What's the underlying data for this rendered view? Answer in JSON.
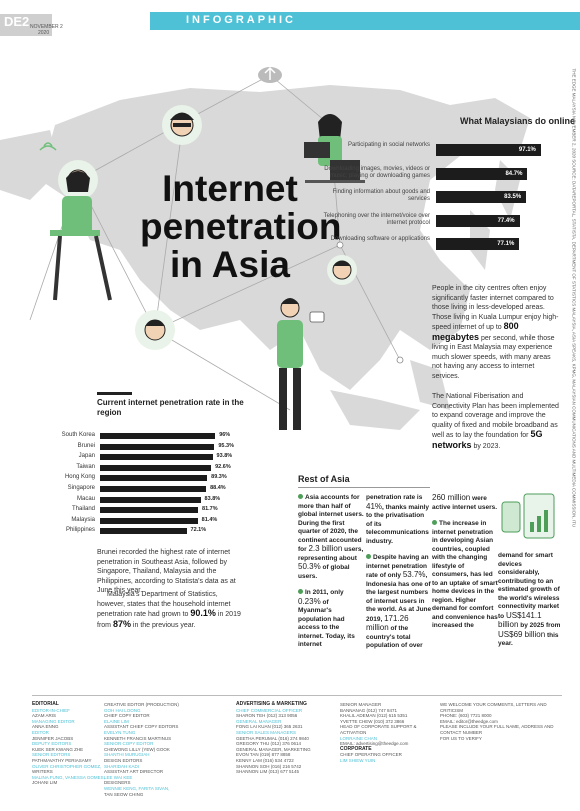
{
  "header": {
    "section_code": "DE2",
    "date_line1": "NOVEMBER 2",
    "date_line2": "2020",
    "banner": "INFOGRAPHIC"
  },
  "title": {
    "line1": "Internet",
    "line2": "penetration",
    "line3": "in Asia"
  },
  "online": {
    "title": "What Malaysians do online",
    "items": [
      {
        "label": "Participating in social networks",
        "value": 97.1,
        "value_label": "97.1%"
      },
      {
        "label": "Downloading images, movies, videos or music; playing or downloading games",
        "value": 84.7,
        "value_label": "84.7%"
      },
      {
        "label": "Finding information about goods and services",
        "value": 83.5,
        "value_label": "83.5%"
      },
      {
        "label": "Telephoning over the internet/voice over internet protocol",
        "value": 77.4,
        "value_label": "77.4%"
      },
      {
        "label": "Downloading software or applications",
        "value": 77.1,
        "value_label": "77.1%"
      }
    ]
  },
  "right_text": {
    "p1_a": "People in the city centres often enjoy significantly faster internet compared to those living in less-developed areas. Those living in Kuala Lumpur enjoy high-speed internet of up to",
    "p1_b": "800 megabytes",
    "p1_c": "per second, while those living in East Malaysia may experience much slower speeds, with many areas not having any access to internet services.",
    "p2_a": "The National Fiberisation and Connectivity Plan has been implemented to expand coverage and improve the quality of fixed and mobile broadband as well as to lay the foundation for",
    "p2_b": "5G networks",
    "p2_c": "by 2023."
  },
  "penetration": {
    "title": "Current internet penetration rate in the region",
    "rows": [
      {
        "country": "South Korea",
        "value": 96,
        "value_label": "96%"
      },
      {
        "country": "Brunei",
        "value": 95.3,
        "value_label": "95.3%"
      },
      {
        "country": "Japan",
        "value": 93.8,
        "value_label": "93.8%"
      },
      {
        "country": "Taiwan",
        "value": 92.6,
        "value_label": "92.6%"
      },
      {
        "country": "Hong Kong",
        "value": 89.3,
        "value_label": "89.3%"
      },
      {
        "country": "Singapore",
        "value": 88.4,
        "value_label": "88.4%"
      },
      {
        "country": "Macau",
        "value": 83.8,
        "value_label": "83.8%"
      },
      {
        "country": "Thailand",
        "value": 81.7,
        "value_label": "81.7%"
      },
      {
        "country": "Malaysia",
        "value": 81.4,
        "value_label": "81.4%"
      },
      {
        "country": "Philippines",
        "value": 72.1,
        "value_label": "72.1%"
      }
    ]
  },
  "left_text": {
    "p1": "Brunei recorded the highest rate of internet penetration in Southeast Asia, followed by Singapore, Thailand, Malaysia and the Philippines, according to Statista's data as at June this year.",
    "p2_a": "Malaysia's Department of Statistics, however, states that the household internet penetration rate had grown to",
    "p2_b": "90.1%",
    "p2_c": "in 2019 from",
    "p2_d": "87%",
    "p2_e": "in the previous year."
  },
  "rest_of_asia": {
    "title": "Rest of Asia",
    "col1_a": "Asia accounts for more than half of global internet users. During the first quarter of 2020, the continent accounted for",
    "col1_b": "2.3 billion",
    "col1_c": "users, representing about",
    "col1_d": "50.3%",
    "col1_e": "of global users.",
    "col1_f": "In 2011, only",
    "col1_g": "0.23%",
    "col1_h": "of Myanmar's population had access to the internet. Today, its internet",
    "col2_a": "penetration rate is",
    "col2_b": "41%",
    "col2_c": ", thanks mainly to the privatisation of its telecommunications industry.",
    "col2_d": "Despite having an internet penetration rate of only",
    "col2_e": "53.7%",
    "col2_f": ", Indonesia has one of the largest numbers of internet users in the world. As at June 2019,",
    "col2_g": "171.26 million",
    "col2_h": "of the country's total population of over",
    "col3_a": "260 million",
    "col3_b": "were active internet users.",
    "col3_c": "The increase in internet penetration in developing Asian countries, coupled with the changing lifestyle of consumers, has led to an uptake of smart home devices in the region. Higher demand for comfort and convenience has increased the",
    "col4_a": "demand for smart devices considerably, contributing to an estimated growth of the world's wireless connectivity market to",
    "col4_b": "US$141.1 billion",
    "col4_c": "by 2025 from",
    "col4_d": "US$69 billion",
    "col4_e": "this year."
  },
  "footer": {
    "c1": [
      "EDITORIAL",
      "EDITOR-IN-CHIEF",
      "AZAM ARIS",
      "MANAGING EDITOR",
      "ANNA ENNG",
      "EDITOR",
      "JENNIFER JACOBS",
      "DEPUTY EDITORS",
      "KUEK SER KWANG ZHE",
      "SENIOR EDITORS",
      "PATHMAVATHY PERIASAMY",
      "OLIVER CHRISTOPHER GOMEZ,",
      "WRITERS",
      "MALINA FUNG, VANESSA GOMES,",
      "JOHANI LIM"
    ],
    "c2": [
      "CREATIVE EDITOR (PRODUCTION)",
      "GOH HAI LOONG",
      "CHIEF COPY EDITOR",
      "ELAINE LIM",
      "ASSISTANT CHIEF COPY EDITORS",
      "EVELYN TUNG",
      "KENNETH FRANCIS MARTINUS",
      "SENIOR COPY EDITOR",
      "CHEWONG LILLY (YEW) GOOK",
      "SHANTHI MURUGIAH",
      "DESIGN EDITORS",
      "SHARIDAH KADI",
      "ASSISTANT ART DIRECTOR",
      "LEE WAI KEE",
      "DESIGNERS",
      "WENNIE KENG, FARITA SIVAN,",
      "TAN SEOW CHING"
    ],
    "c3": [
      "ADVERTISING & MARKETING",
      "CHIEF COMMERCIAL OFFICER",
      "SHARON TEH (012) 313 9056",
      "GENERAL MANAGER",
      "FONG LAI KUAN (012) 365 2631",
      "SENIOR SALES MANAGERS",
      "GEETHA PERUMAL (016) 274 9840",
      "GREGORY THU (012) 376 0614",
      "GENERAL MANAGER, MARKETING",
      "EVON TAN (019) 877 8858",
      "KENNY LAM (016) 534 4722",
      "SHANNON SOH (016) 216 5742",
      "SHANNON LIM (013) 677 5145"
    ],
    "c4": [
      "SENIOR MANAGER",
      "BANNANAG (012) 747 8471",
      "KHALIL ADEMAN (012) 615 5351",
      "YVETTE CHEW (010) 372 3866",
      "HEAD OF CORPORATE SUPPORT & ACTIVATION",
      "LORRAINE CHAN",
      "EMAIL: advertising@theedge.com",
      "CORPORATE",
      "CHIEF OPERATING OFFICER",
      "LIM SHIEW YUIN"
    ],
    "c5": [
      "WE WELCOME YOUR COMMENTS, LETTERS AND CRITICISM",
      "PHONE: (603) 7721 8000",
      "EMAIL: editor@theedge.com",
      "PLEASE INCLUDE YOUR FULL NAME, ADDRESS AND CONTACT NUMBER",
      "FOR US TO VERIFY"
    ]
  },
  "sidebar": "THE EDGE MALAYSIA  NOVEMBER 2, 2020  SOURCE: DATAREPORTAL, STATISTA, DEPARTMENT OF STATISTICS MALAYSIA, ASIA SPEAKS, KPMG, MALAYSIAN COMMUNICATIONS AND MULTIMEDIA COMMISSION, ITU",
  "colors": {
    "banner": "#4ec1d6",
    "map": "#d9d9d9",
    "accent_green": "#4e9e5a",
    "bars": "#1c1c1c"
  }
}
